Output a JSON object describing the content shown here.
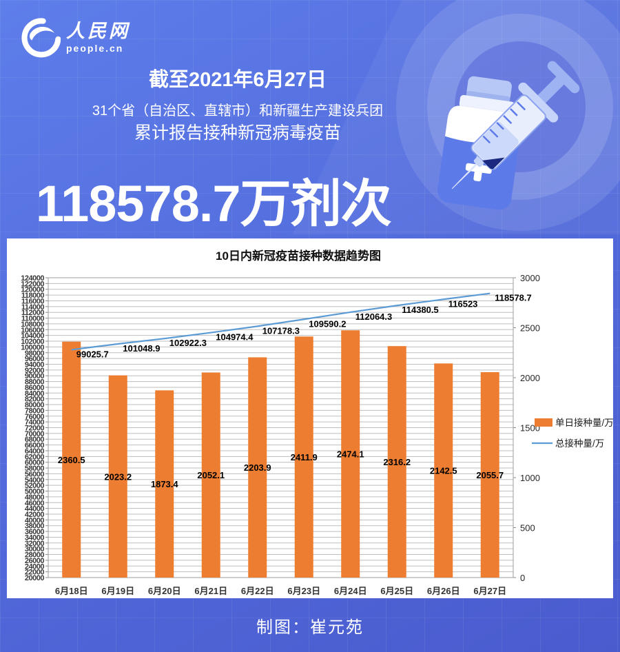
{
  "logo": {
    "name": "人民网",
    "domain": "people.cn"
  },
  "header": {
    "date_line": "截至2021年6月27日",
    "scope_line": "31个省（自治区、直辖市）和新疆生产建设兵团",
    "report_line": "累计报告接种新冠病毒疫苗",
    "big_number": "118578.7万剂次"
  },
  "chart_data": {
    "type": "bar",
    "title": "10日内新冠疫苗接种数据趋势图",
    "categories": [
      "6月18日",
      "6月19日",
      "6月20日",
      "6月21日",
      "6月22日",
      "6月23日",
      "6月24日",
      "6月25日",
      "6月26日",
      "6月27日"
    ],
    "series": [
      {
        "name": "单日接种量/万",
        "type": "bar",
        "axis": "right",
        "color": "#ED7D31",
        "values": [
          2360.5,
          2023.2,
          1873.4,
          2052.1,
          2203.9,
          2411.9,
          2474.1,
          2316.2,
          2142.5,
          2055.7
        ]
      },
      {
        "name": "总接种量/万",
        "type": "line",
        "axis": "left",
        "color": "#5B9BD5",
        "values": [
          99025.7,
          101048.9,
          102922.3,
          104974.4,
          107178.3,
          109590.2,
          112064.3,
          114380.5,
          116523,
          118578.7
        ]
      }
    ],
    "left_axis": {
      "min": 20000,
      "max": 124000,
      "step": 2000
    },
    "right_axis": {
      "min": 0,
      "max": 3000,
      "step": 500
    },
    "grid": true,
    "legend_position": "right"
  },
  "footer": {
    "credit": "制图：崔元苑"
  },
  "colors": {
    "background_top": "#5e7eea",
    "background_bottom": "#4a5bce",
    "bar": "#ED7D31",
    "line": "#5B9BD5",
    "panel": "#ffffff",
    "gridline": "#bdbdbd"
  },
  "icons": {
    "logo": "people-cn-swirl-globe",
    "illustration": [
      "vaccine-vial",
      "syringe"
    ]
  }
}
